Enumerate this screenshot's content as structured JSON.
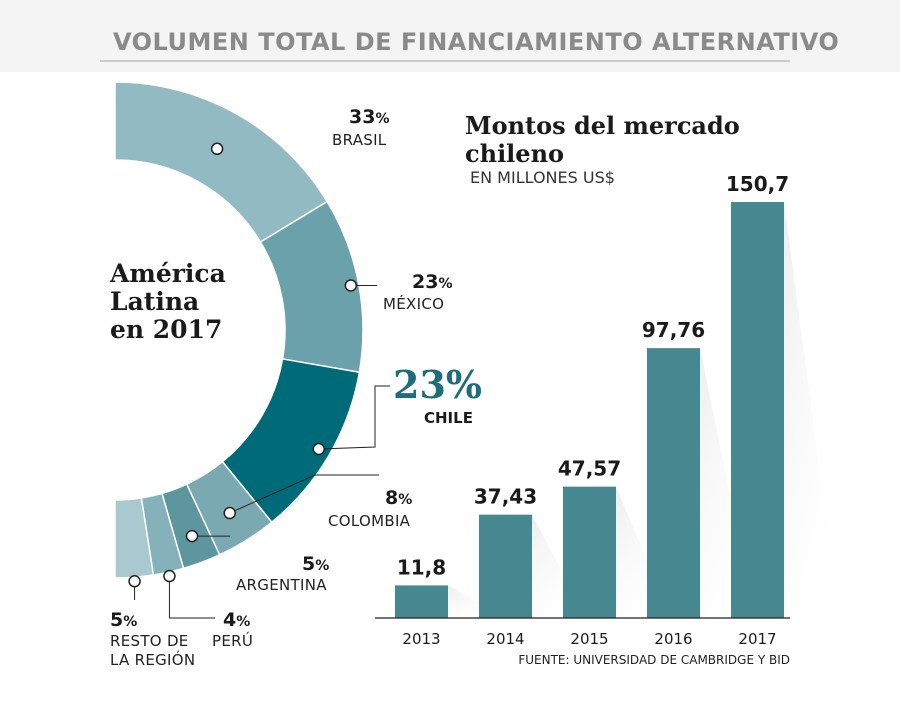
{
  "header": {
    "title": "VOLUMEN TOTAL DE FINANCIAMIENTO ALTERNATIVO"
  },
  "donut": {
    "center_label": [
      "América",
      "Latina",
      "en 2017"
    ],
    "pct_sign": "%"
  },
  "bars": {
    "title_line1": "Montos del mercado",
    "title_line2": "chileno",
    "subtitle": "EN MILLONES US$",
    "source": "FUENTE: UNIVERSIDAD DE CAMBRIDGE Y BID"
  },
  "chart_data": [
    {
      "type": "pie",
      "title": "América Latina en 2017",
      "slices": [
        {
          "label": "BRASIL",
          "value": 33,
          "color": "#92bac3"
        },
        {
          "label": "MÉXICO",
          "value": 23,
          "color": "#6ba1ab"
        },
        {
          "label": "CHILE",
          "value": 23,
          "color": "#006b78",
          "highlight": true
        },
        {
          "label": "COLOMBIA",
          "value": 8,
          "color": "#7aa9b2"
        },
        {
          "label": "ARGENTINA",
          "value": 5,
          "color": "#5e969f"
        },
        {
          "label": "PERÚ",
          "value": 4,
          "color": "#85b1ba"
        },
        {
          "label": "RESTO DE LA REGIÓN",
          "value": 5,
          "color": "#a7c9cf"
        }
      ]
    },
    {
      "type": "bar",
      "title": "Montos del mercado chileno",
      "ylabel": "EN MILLONES US$",
      "categories": [
        "2013",
        "2014",
        "2015",
        "2016",
        "2017"
      ],
      "values": [
        11.8,
        37.43,
        47.57,
        97.76,
        150.7
      ],
      "value_labels": [
        "11,8",
        "37,43",
        "47,57",
        "97,76",
        "150,7"
      ],
      "color": "#468790",
      "ylim": [
        0,
        150.7
      ]
    }
  ]
}
